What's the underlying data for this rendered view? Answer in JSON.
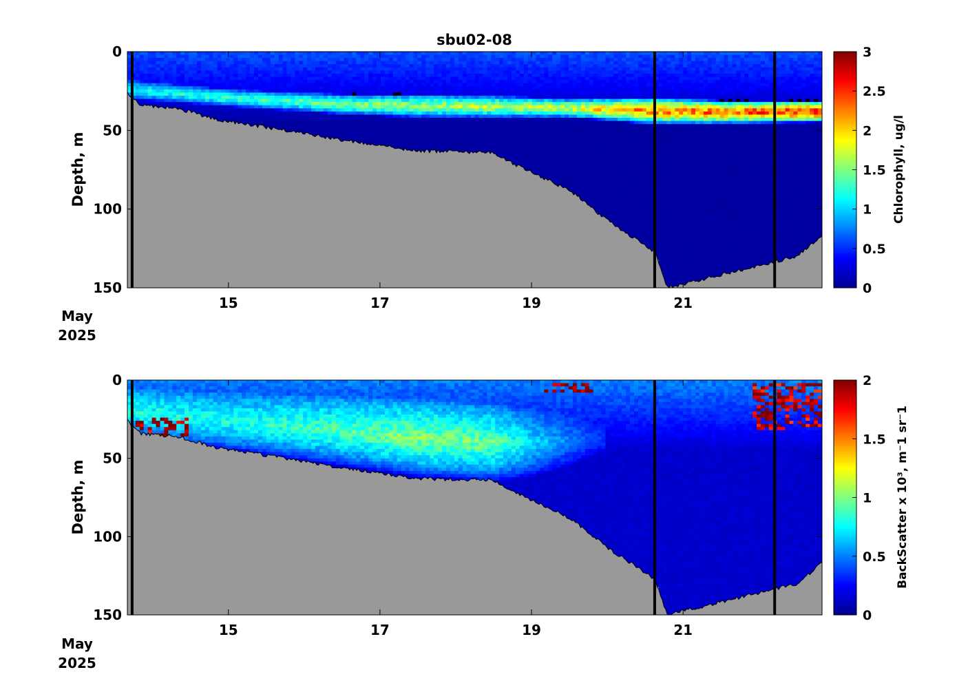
{
  "title": "sbu02-08",
  "colors": {
    "bottom_fill": "#999999",
    "background": "#ffffff",
    "profile_line": "#000000"
  },
  "colormap": "jet",
  "chart_data": [
    {
      "type": "heatmap",
      "name": "chlorophyll-panel",
      "title": "sbu02-08",
      "ylabel": "Depth, m",
      "colorbar_label": "Chlorophyll, ug/l",
      "x_ticks": [
        "15",
        "17",
        "19",
        "21"
      ],
      "x_tick_values": [
        "2025-05-15",
        "2025-05-17",
        "2025-05-19",
        "2025-05-21"
      ],
      "x_date_label": [
        "May",
        "2025"
      ],
      "xlim": [
        "2025-05-13T16:00",
        "2025-05-22T20:00"
      ],
      "ylim": [
        150,
        0
      ],
      "y_ticks": [
        "0",
        "50",
        "100",
        "150"
      ],
      "clim": [
        0,
        3
      ],
      "colorbar_ticks": [
        "0",
        "0.5",
        "1",
        "1.5",
        "2",
        "2.5",
        "3"
      ],
      "profile_lines": [
        "2025-05-13T17:30",
        "2025-05-20T15:00",
        "2025-05-22T05:00"
      ],
      "bathymetry": {
        "x": [
          "2025-05-13T16:00",
          "2025-05-13T20:00",
          "2025-05-14T08:00",
          "2025-05-14T20:00",
          "2025-05-15T12:00",
          "2025-05-16T12:00",
          "2025-05-17T12:00",
          "2025-05-18T12:00",
          "2025-05-18T19:00",
          "2025-05-19T12:00",
          "2025-05-20T00:00",
          "2025-05-20T15:00",
          "2025-05-20T19:00",
          "2025-05-22T12:00",
          "2025-05-22T20:00"
        ],
        "depth": [
          26,
          34,
          36,
          43,
          48,
          56,
          63,
          64,
          72,
          88,
          107,
          127,
          150,
          130,
          117
        ]
      },
      "layers": [
        {
          "x": [
            "2025-05-13T16:00",
            "2025-05-15T00:00",
            "2025-05-16T12:00",
            "2025-05-17T12:00",
            "2025-05-18T12:00",
            "2025-05-19T12:00",
            "2025-05-20T12:00",
            "2025-05-21T12:00",
            "2025-05-22T20:00"
          ],
          "top": [
            18,
            24,
            27,
            27,
            28,
            30,
            29,
            31,
            31
          ],
          "bottom": [
            30,
            35,
            40,
            42,
            42,
            42,
            46,
            46,
            45
          ],
          "value": [
            1.1,
            1.3,
            1.5,
            1.6,
            1.7,
            1.8,
            2.3,
            2.4,
            2.6
          ]
        }
      ],
      "surface_value": 0.6,
      "deep_value": 0.1
    },
    {
      "type": "heatmap",
      "name": "backscatter-panel",
      "ylabel": "Depth, m",
      "colorbar_label": "BackScatter x 10³, m⁻1 sr⁻1",
      "x_ticks": [
        "15",
        "17",
        "19",
        "21"
      ],
      "x_tick_values": [
        "2025-05-15",
        "2025-05-17",
        "2025-05-19",
        "2025-05-21"
      ],
      "x_date_label": [
        "May",
        "2025"
      ],
      "xlim": [
        "2025-05-13T16:00",
        "2025-05-22T20:00"
      ],
      "ylim": [
        150,
        0
      ],
      "y_ticks": [
        "0",
        "50",
        "100",
        "150"
      ],
      "clim": [
        0,
        2
      ],
      "colorbar_ticks": [
        "0",
        "0.5",
        "1",
        "1.5",
        "2"
      ],
      "profile_lines": [
        "2025-05-13T17:30",
        "2025-05-20T15:00",
        "2025-05-22T05:00"
      ],
      "bathymetry": {
        "x": [
          "2025-05-13T16:00",
          "2025-05-13T20:00",
          "2025-05-14T08:00",
          "2025-05-14T20:00",
          "2025-05-15T12:00",
          "2025-05-16T12:00",
          "2025-05-17T12:00",
          "2025-05-18T12:00",
          "2025-05-18T19:00",
          "2025-05-19T12:00",
          "2025-05-20T00:00",
          "2025-05-20T15:00",
          "2025-05-20T19:00",
          "2025-05-22T12:00",
          "2025-05-22T20:00"
        ],
        "depth": [
          26,
          34,
          36,
          43,
          48,
          56,
          63,
          64,
          72,
          88,
          107,
          127,
          150,
          130,
          117
        ]
      },
      "layers": [
        {
          "x": [
            "2025-05-13T16:00",
            "2025-05-15T00:00",
            "2025-05-16T12:00",
            "2025-05-17T12:00",
            "2025-05-18T12:00",
            "2025-05-19T00:00",
            "2025-05-19T12:00",
            "2025-05-20T00:00"
          ],
          "top": [
            5,
            8,
            10,
            12,
            15,
            18,
            22,
            30
          ],
          "bottom": [
            35,
            45,
            55,
            62,
            65,
            62,
            55,
            45
          ],
          "value": [
            0.8,
            0.8,
            0.9,
            1.0,
            0.95,
            0.7,
            0.5,
            0.35
          ]
        }
      ],
      "hotspots": [
        {
          "x": [
            "2025-05-13T18:00",
            "2025-05-14T12:00"
          ],
          "depth": [
            25,
            35
          ],
          "value": 2.0
        },
        {
          "x": [
            "2025-05-19T04:00",
            "2025-05-19T20:00"
          ],
          "depth": [
            2,
            8
          ],
          "value": 2.0
        },
        {
          "x": [
            "2025-05-21T22:00",
            "2025-05-22T20:00"
          ],
          "depth": [
            2,
            32
          ],
          "value": 1.9
        }
      ],
      "surface_value": 0.5,
      "deep_value": 0.15
    }
  ]
}
